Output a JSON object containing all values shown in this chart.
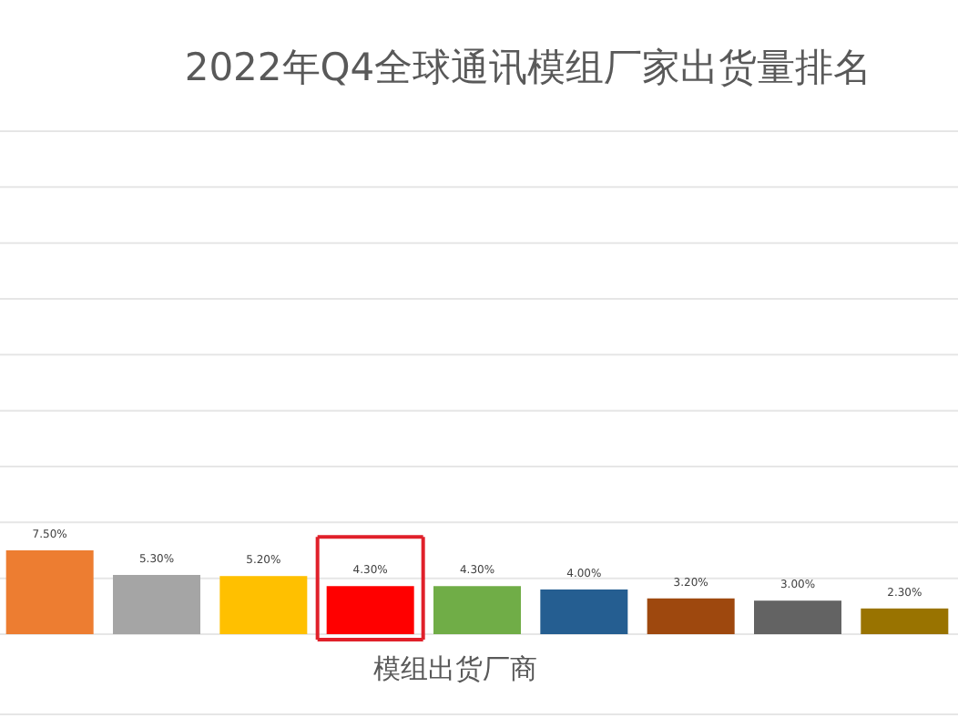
{
  "chart_data": {
    "type": "bar",
    "title": "2022年Q4全球通讯模组厂家出货量排名",
    "xlabel": "模组出货厂商",
    "categories": [
      null,
      null,
      null,
      null,
      null,
      null,
      null,
      null,
      null
    ],
    "values": [
      7.5,
      5.3,
      5.2,
      4.3,
      4.3,
      4.0,
      3.2,
      3.0,
      2.3
    ],
    "value_labels": [
      "7.50%",
      "5.30%",
      "5.20%",
      "4.30%",
      "4.30%",
      "4.00%",
      "3.20%",
      "3.00%",
      "2.30%"
    ],
    "colors": [
      "#ed7d31",
      "#a5a5a5",
      "#ffc000",
      "#ff0000",
      "#70ad47",
      "#255e91",
      "#9e480e",
      "#636363",
      "#997300"
    ],
    "ylim": [
      0,
      45
    ],
    "yticks": [
      0,
      5,
      10,
      15,
      20,
      25,
      30,
      35,
      40,
      45
    ],
    "grid": "y",
    "tick_labels": false
  }
}
